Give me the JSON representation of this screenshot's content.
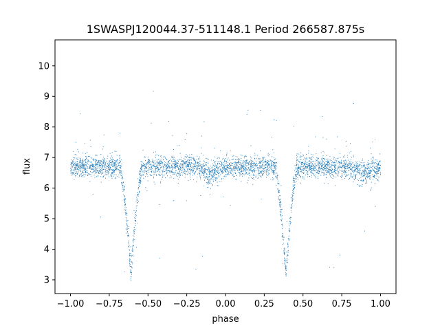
{
  "chart_data": {
    "type": "scatter",
    "title": "1SWASPJ120044.37-511148.1 Period 266587.875s",
    "xlabel": "phase",
    "ylabel": "flux",
    "xlim": [
      -1.1,
      1.1
    ],
    "ylim": [
      2.55,
      10.85
    ],
    "x_ticks": [
      -1.0,
      -0.75,
      -0.5,
      -0.25,
      0.0,
      0.25,
      0.5,
      0.75,
      1.0
    ],
    "x_tick_labels": [
      "−1.00",
      "−0.75",
      "−0.50",
      "−0.25",
      "0.00",
      "0.25",
      "0.50",
      "0.75",
      "1.00"
    ],
    "y_ticks": [
      3,
      4,
      5,
      6,
      7,
      8,
      9,
      10
    ],
    "y_tick_labels": [
      "3",
      "4",
      "5",
      "6",
      "7",
      "8",
      "9",
      "10"
    ],
    "grid": false,
    "marker_color": "#1f77b4",
    "series": [
      {
        "profile": {
          "baseline_flux": 6.7,
          "scatter": 0.18,
          "eclipses": [
            {
              "center_phase": -0.61,
              "min_flux": 3.2,
              "half_width": 0.07
            },
            {
              "center_phase": 0.39,
              "min_flux": 3.2,
              "half_width": 0.07
            }
          ],
          "dips": [
            {
              "center_phase": -0.1,
              "depth": 0.2
            },
            {
              "center_phase": 0.9,
              "depth": 0.2
            }
          ]
        }
      }
    ]
  }
}
